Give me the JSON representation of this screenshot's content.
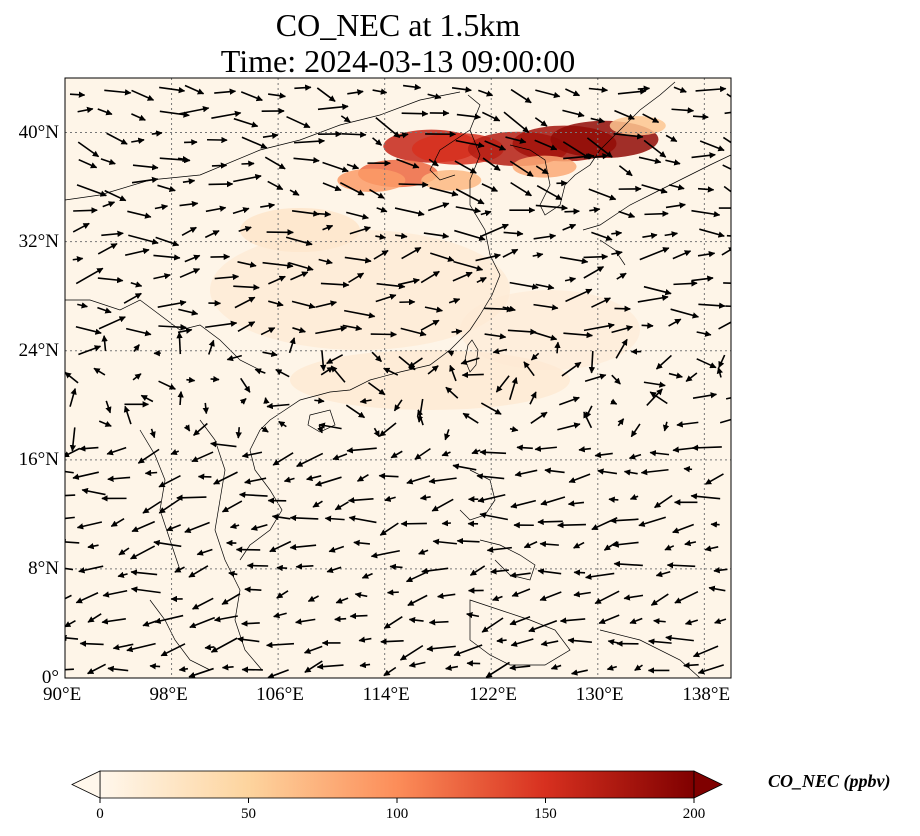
{
  "title": {
    "line1": "CO_NEC at 1.5km",
    "line2": "Time: 2024-03-13 09:00:00"
  },
  "map": {
    "extent": {
      "lon": [
        90,
        140
      ],
      "lat": [
        0,
        44
      ]
    },
    "lon_ticks": [
      "90°E",
      "98°E",
      "106°E",
      "114°E",
      "122°E",
      "130°E",
      "138°E"
    ],
    "lat_ticks": [
      "0°",
      "8°N",
      "16°N",
      "24°N",
      "32°N",
      "40°N"
    ],
    "gridline_style": "dotted",
    "plume": [
      {
        "lon": 117.5,
        "lat": 39.0,
        "value": 160
      },
      {
        "lon": 119.5,
        "lat": 38.8,
        "value": 150
      },
      {
        "lon": 124.0,
        "lat": 38.8,
        "value": 170
      },
      {
        "lon": 127.5,
        "lat": 39.2,
        "value": 180
      },
      {
        "lon": 130.5,
        "lat": 39.5,
        "value": 190
      },
      {
        "lon": 115.0,
        "lat": 37.0,
        "value": 120
      },
      {
        "lon": 113.0,
        "lat": 36.5,
        "value": 90
      },
      {
        "lon": 119.0,
        "lat": 36.5,
        "value": 70
      },
      {
        "lon": 126.0,
        "lat": 37.5,
        "value": 80
      },
      {
        "lon": 133.0,
        "lat": 40.5,
        "value": 60
      }
    ]
  },
  "colorbar": {
    "title": "CO_NEC (ppbv)",
    "colormap": "OrRd",
    "min": 0,
    "max": 200,
    "extend": "both",
    "tick_labels": [
      "0",
      "50",
      "100",
      "150",
      "200"
    ],
    "tick_values": [
      0,
      50,
      100,
      150,
      200
    ]
  }
}
